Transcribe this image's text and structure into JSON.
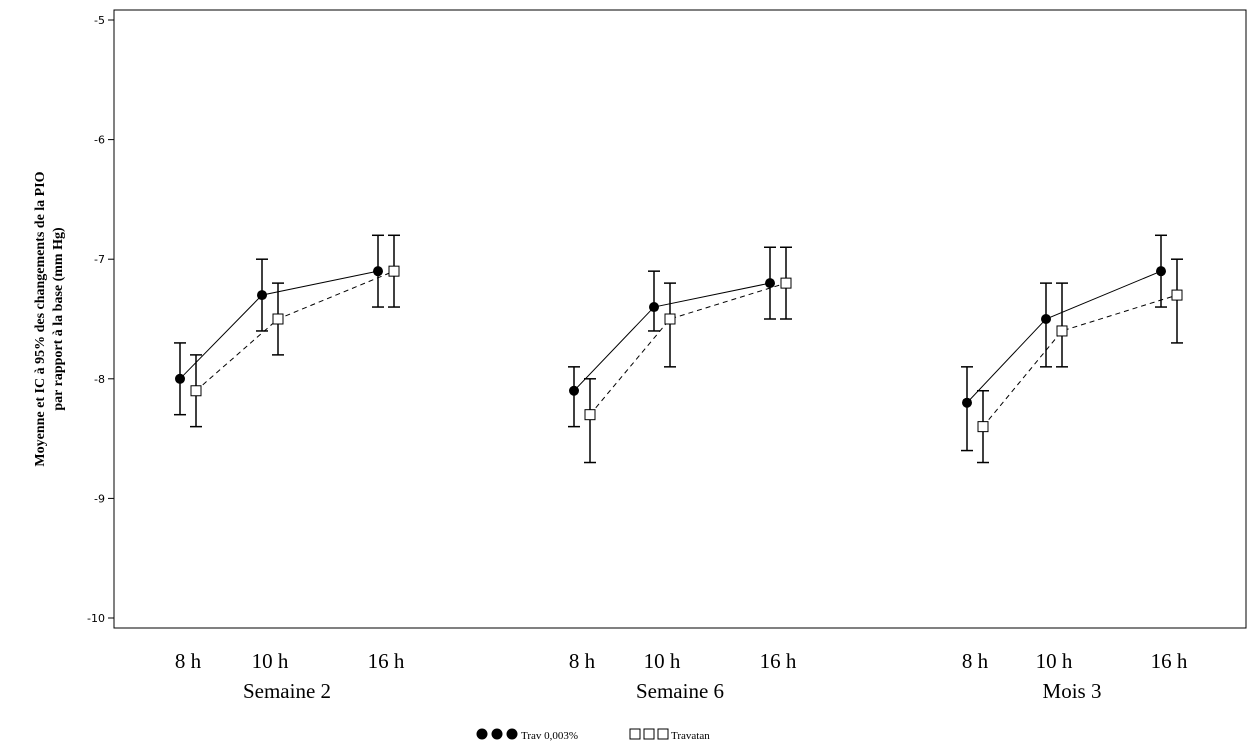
{
  "chart_data": {
    "type": "scatter",
    "ylabel_line1": "Moyenne et IC à 95% des changements de la PIO",
    "ylabel_line2": "par rapport à la base (mm Hg)",
    "ylim": [
      -10,
      -5
    ],
    "yticks": [
      "-5",
      "-6",
      "-7",
      "-8",
      "-9",
      "-10"
    ],
    "ytick_values": [
      -5,
      -6,
      -7,
      -8,
      -9,
      -10
    ],
    "grid": false,
    "legend_position": "bottom-center",
    "groups": [
      {
        "label": "Semaine 2",
        "times": [
          "8 h",
          "10 h",
          "16 h"
        ]
      },
      {
        "label": "Semaine 6",
        "times": [
          "8 h",
          "10 h",
          "16 h"
        ]
      },
      {
        "label": "Mois 3",
        "times": [
          "8 h",
          "10 h",
          "16 h"
        ]
      }
    ],
    "series": [
      {
        "name": "Trav 0,003%",
        "marker": "filled-circle",
        "line": "solid",
        "mean": [
          [
            -8.0,
            -7.3,
            -7.1
          ],
          [
            -8.1,
            -7.4,
            -7.2
          ],
          [
            -8.2,
            -7.5,
            -7.1
          ]
        ],
        "ci_low": [
          [
            -8.3,
            -7.6,
            -7.4
          ],
          [
            -8.4,
            -7.6,
            -7.5
          ],
          [
            -8.6,
            -7.9,
            -7.4
          ]
        ],
        "ci_high": [
          [
            -7.7,
            -7.0,
            -6.8
          ],
          [
            -7.9,
            -7.1,
            -6.9
          ],
          [
            -7.9,
            -7.2,
            -6.8
          ]
        ]
      },
      {
        "name": "Travatan",
        "marker": "open-square",
        "line": "dashed",
        "mean": [
          [
            -8.1,
            -7.5,
            -7.1
          ],
          [
            -8.3,
            -7.5,
            -7.2
          ],
          [
            -8.4,
            -7.6,
            -7.3
          ]
        ],
        "ci_low": [
          [
            -8.4,
            -7.8,
            -7.4
          ],
          [
            -8.7,
            -7.9,
            -7.5
          ],
          [
            -8.7,
            -7.9,
            -7.7
          ]
        ],
        "ci_high": [
          [
            -7.8,
            -7.2,
            -6.8
          ],
          [
            -8.0,
            -7.2,
            -6.9
          ],
          [
            -8.1,
            -7.2,
            -7.0
          ]
        ]
      }
    ]
  }
}
